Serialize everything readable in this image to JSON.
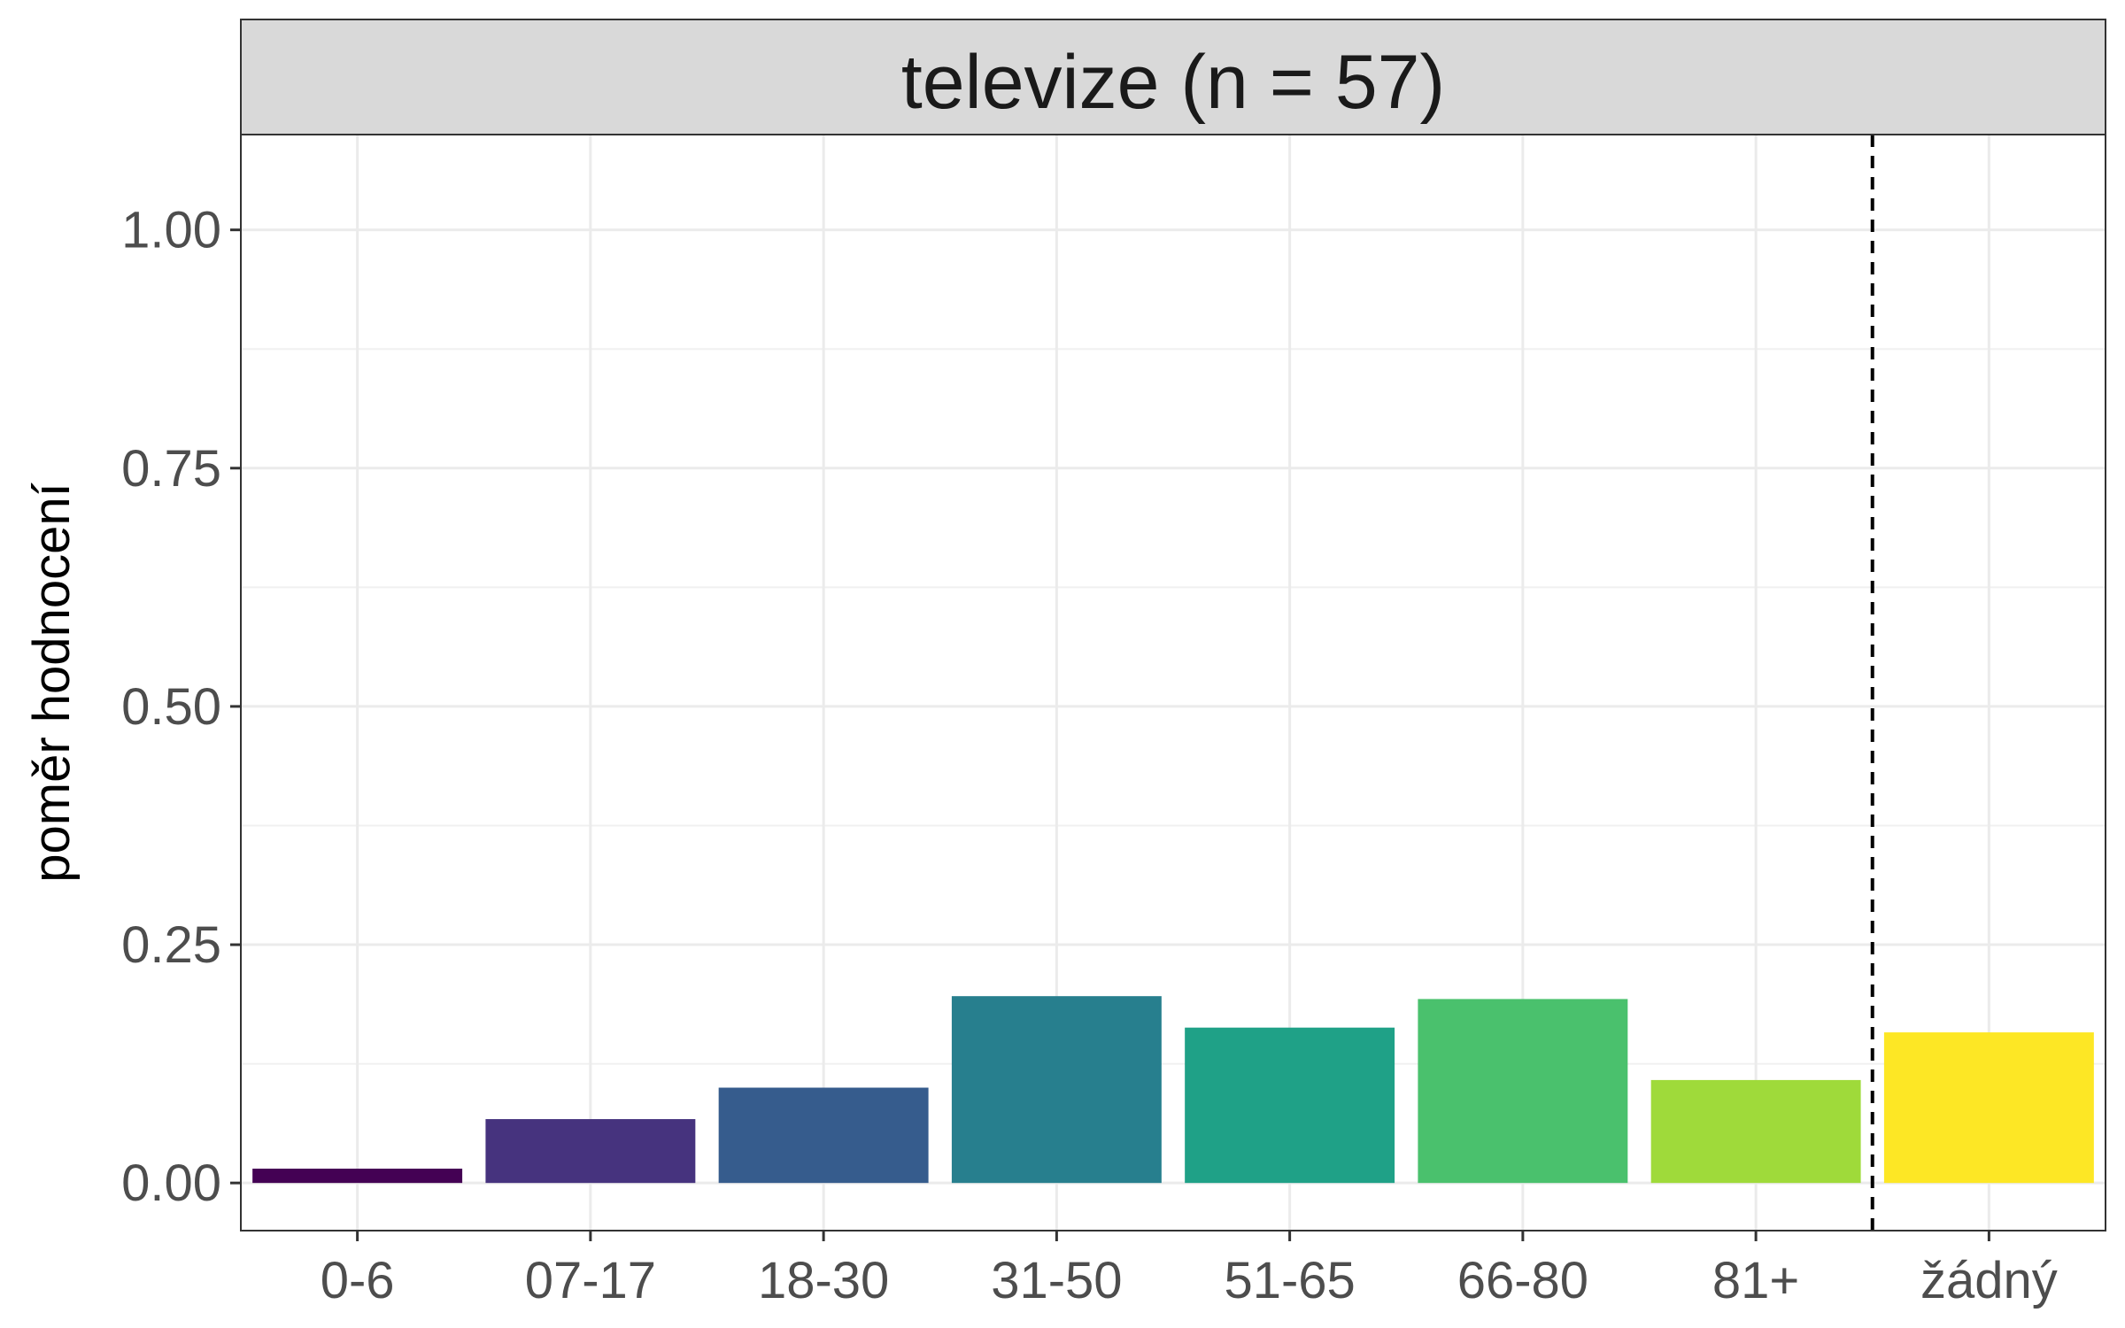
{
  "chart_data": {
    "type": "bar",
    "panel_title": "televize (n = 57)",
    "ylabel": "poměr hodnocení",
    "xlabel": "",
    "ylim": [
      -0.05,
      1.1
    ],
    "yticks": [
      0.0,
      0.25,
      0.5,
      0.75,
      1.0
    ],
    "ytick_labels": [
      "0.00",
      "0.25",
      "0.50",
      "0.75",
      "1.00"
    ],
    "categories": [
      "0-6",
      "07-17",
      "18-30",
      "31-50",
      "51-65",
      "66-80",
      "81+",
      "žádný"
    ],
    "values": [
      0.015,
      0.067,
      0.1,
      0.196,
      0.163,
      0.193,
      0.108,
      0.158
    ],
    "colors": [
      "#440154",
      "#46337E",
      "#365C8D",
      "#277F8E",
      "#1FA187",
      "#4AC16D",
      "#9FDA3A",
      "#FDE725"
    ],
    "separator_line": {
      "after_category": "81+",
      "style": "dashed"
    },
    "grid": true,
    "legend": "none"
  }
}
